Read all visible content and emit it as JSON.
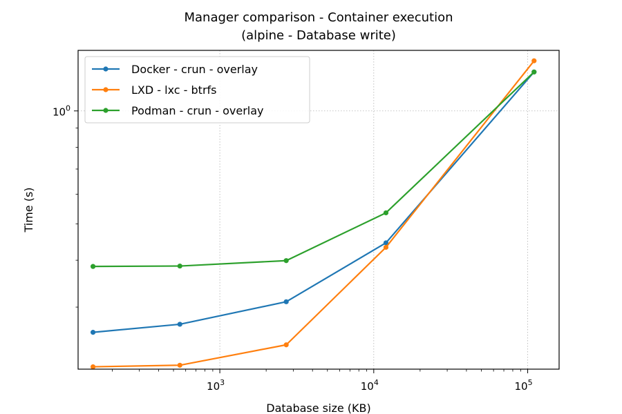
{
  "chart_data": {
    "type": "line",
    "title": "Manager comparison - Container execution",
    "subtitle": "(alpine - Database write)",
    "xlabel": "Database size (KB)",
    "ylabel": "Time (s)",
    "xscale": "log",
    "yscale": "log",
    "xlim": [
      120,
      160000
    ],
    "ylim": [
      0.205,
      1.45
    ],
    "x_ticks": [
      {
        "value": 1000,
        "base": "10",
        "exp": "3"
      },
      {
        "value": 10000,
        "base": "10",
        "exp": "4"
      },
      {
        "value": 100000,
        "base": "10",
        "exp": "5"
      }
    ],
    "y_ticks": [
      {
        "value": 1,
        "base": "10",
        "exp": "0"
      }
    ],
    "grid": true,
    "legend_position": "upper-left",
    "x": [
      150,
      550,
      2700,
      12000,
      110000
    ],
    "series": [
      {
        "name": "Docker - crun - overlay",
        "color": "#1f77b4",
        "values": [
          0.257,
          0.27,
          0.31,
          0.445,
          1.27
        ]
      },
      {
        "name": "LXD - lxc - btrfs",
        "color": "#ff7f0e",
        "values": [
          0.208,
          0.21,
          0.238,
          0.433,
          1.36
        ]
      },
      {
        "name": "Podman - crun - overlay",
        "color": "#2ca02c",
        "values": [
          0.385,
          0.386,
          0.399,
          0.535,
          1.27
        ]
      }
    ]
  }
}
